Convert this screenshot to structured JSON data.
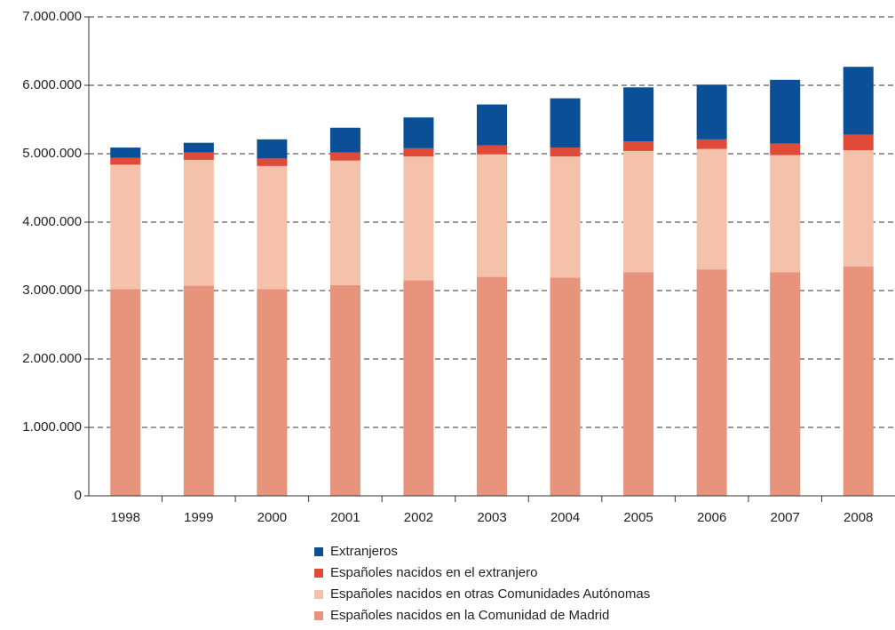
{
  "chart_data": {
    "type": "stacked-bar",
    "categories": [
      "1998",
      "1999",
      "2000",
      "2001",
      "2002",
      "2003",
      "2004",
      "2005",
      "2006",
      "2007",
      "2008"
    ],
    "series": [
      {
        "name": "Españoles nacidos en la Comunidad de Madrid",
        "color": "#e8937c",
        "values": [
          3020000,
          3070000,
          3020000,
          3080000,
          3150000,
          3200000,
          3190000,
          3270000,
          3310000,
          3270000,
          3350000
        ]
      },
      {
        "name": "Españoles nacidos en otras Comunidades Autónomas",
        "color": "#f4c2ab",
        "values": [
          1820000,
          1840000,
          1800000,
          1820000,
          1810000,
          1790000,
          1770000,
          1770000,
          1760000,
          1710000,
          1700000
        ]
      },
      {
        "name": "Españoles nacidos en el extranjero",
        "color": "#e04a38",
        "values": [
          100000,
          110000,
          110000,
          120000,
          120000,
          130000,
          130000,
          140000,
          140000,
          170000,
          230000
        ]
      },
      {
        "name": "Extranjeros",
        "color": "#0b4f96",
        "values": [
          150000,
          140000,
          280000,
          360000,
          450000,
          600000,
          720000,
          790000,
          800000,
          930000,
          990000
        ]
      }
    ],
    "ylim": [
      0,
      7000000
    ],
    "yticks": [
      0,
      {
        "value": 1000000,
        "label": "1.000.000"
      },
      {
        "value": 2000000,
        "label": "2.000.000"
      },
      {
        "value": 3000000,
        "label": "3.000.000"
      },
      {
        "value": 4000000,
        "label": "4.000.000"
      },
      {
        "value": 5000000,
        "label": "5.000.000"
      },
      {
        "value": 6000000,
        "label": "6.000.000"
      },
      {
        "value": 7000000,
        "label": "7.000.000"
      }
    ],
    "grid": true
  }
}
